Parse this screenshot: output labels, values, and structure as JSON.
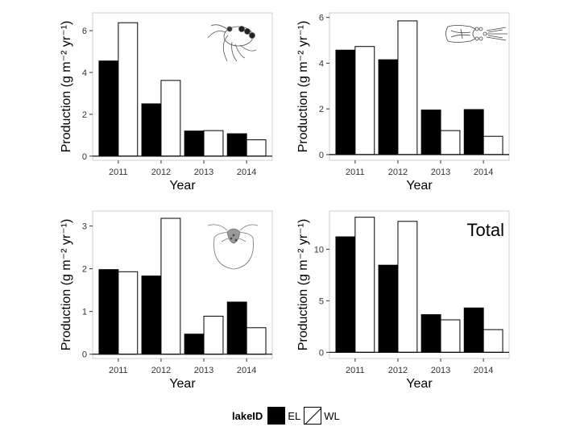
{
  "legend": {
    "title": "lakeID",
    "items": [
      {
        "label": "EL",
        "color": "#000000"
      },
      {
        "label": "WL",
        "color": "#ffffff"
      }
    ]
  },
  "chart_data": [
    {
      "type": "bar",
      "title": "",
      "panel_label": "",
      "icon": "copepod-icon",
      "xlabel": "Year",
      "ylabel": "Production (g m⁻² yr⁻¹)",
      "categories": [
        "2011",
        "2012",
        "2013",
        "2014"
      ],
      "series": [
        {
          "name": "EL",
          "color": "#000000",
          "values": [
            4.55,
            2.5,
            1.2,
            1.07
          ]
        },
        {
          "name": "WL",
          "color": "#ffffff",
          "values": [
            6.38,
            3.62,
            1.22,
            0.78
          ]
        }
      ],
      "ylim": [
        -0.2,
        6.85
      ],
      "yticks": [
        0,
        2,
        4,
        6
      ]
    },
    {
      "type": "bar",
      "title": "",
      "panel_label": "",
      "icon": "cladoceran-icon",
      "xlabel": "Year",
      "ylabel": "Production (g m⁻² yr⁻¹)",
      "categories": [
        "2011",
        "2012",
        "2013",
        "2014"
      ],
      "series": [
        {
          "name": "EL",
          "color": "#000000",
          "values": [
            4.57,
            4.15,
            1.95,
            1.97
          ]
        },
        {
          "name": "WL",
          "color": "#ffffff",
          "values": [
            4.73,
            5.85,
            1.05,
            0.8
          ]
        }
      ],
      "ylim": [
        -0.25,
        6.2
      ],
      "yticks": [
        0,
        2,
        4,
        6
      ]
    },
    {
      "type": "bar",
      "title": "",
      "panel_label": "",
      "icon": "rotifer-icon",
      "xlabel": "Year",
      "ylabel": "Production (g m⁻² yr⁻¹)",
      "categories": [
        "2011",
        "2012",
        "2013",
        "2014"
      ],
      "series": [
        {
          "name": "EL",
          "color": "#000000",
          "values": [
            1.98,
            1.83,
            0.47,
            1.22
          ]
        },
        {
          "name": "WL",
          "color": "#ffffff",
          "values": [
            1.93,
            3.18,
            0.89,
            0.62
          ]
        }
      ],
      "ylim": [
        -0.1,
        3.35
      ],
      "yticks": [
        0,
        1,
        2,
        3
      ]
    },
    {
      "type": "bar",
      "title": "",
      "panel_label": "Total",
      "icon": "",
      "xlabel": "Year",
      "ylabel": "Production (g m⁻² yr⁻¹)",
      "categories": [
        "2011",
        "2012",
        "2013",
        "2014"
      ],
      "series": [
        {
          "name": "EL",
          "color": "#000000",
          "values": [
            11.2,
            8.45,
            3.65,
            4.3
          ]
        },
        {
          "name": "WL",
          "color": "#ffffff",
          "values": [
            13.1,
            12.7,
            3.15,
            2.2
          ]
        }
      ],
      "ylim": [
        -0.6,
        13.7
      ],
      "yticks": [
        0,
        5,
        10
      ]
    }
  ]
}
